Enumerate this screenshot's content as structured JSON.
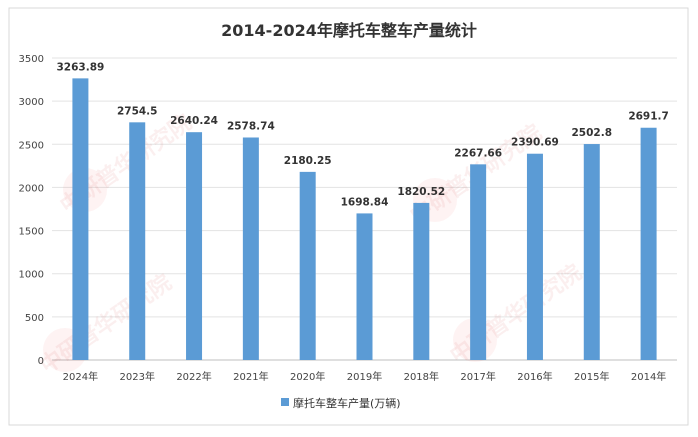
{
  "chart_data": {
    "type": "bar",
    "title": "2014-2024年摩托车整车产量统计",
    "categories": [
      "2024年",
      "2023年",
      "2022年",
      "2021年",
      "2020年",
      "2019年",
      "2018年",
      "2017年",
      "2016年",
      "2015年",
      "2014年"
    ],
    "series": [
      {
        "name": "摩托车整车产量(万辆)",
        "values": [
          3263.89,
          2754.5,
          2640.24,
          2578.74,
          2180.25,
          1698.84,
          1820.52,
          2267.66,
          2390.69,
          2502.8,
          2691.7
        ],
        "color": "#5b9bd5"
      }
    ],
    "data_labels": [
      "3263.89",
      "2754.5",
      "2640.24",
      "2578.74",
      "2180.25",
      "1698.84",
      "1820.52",
      "2267.66",
      "2390.69",
      "2502.8",
      "2691.7"
    ],
    "ylim": [
      0,
      3500
    ],
    "yticks": [
      "0",
      "500",
      "1000",
      "1500",
      "2000",
      "2500",
      "3000",
      "3500"
    ],
    "xlabel": "",
    "ylabel": "",
    "grid": true,
    "legend_position": "bottom"
  },
  "watermark": "CIRN 中研普华研究院 WWW.ChinaIRN.COM"
}
